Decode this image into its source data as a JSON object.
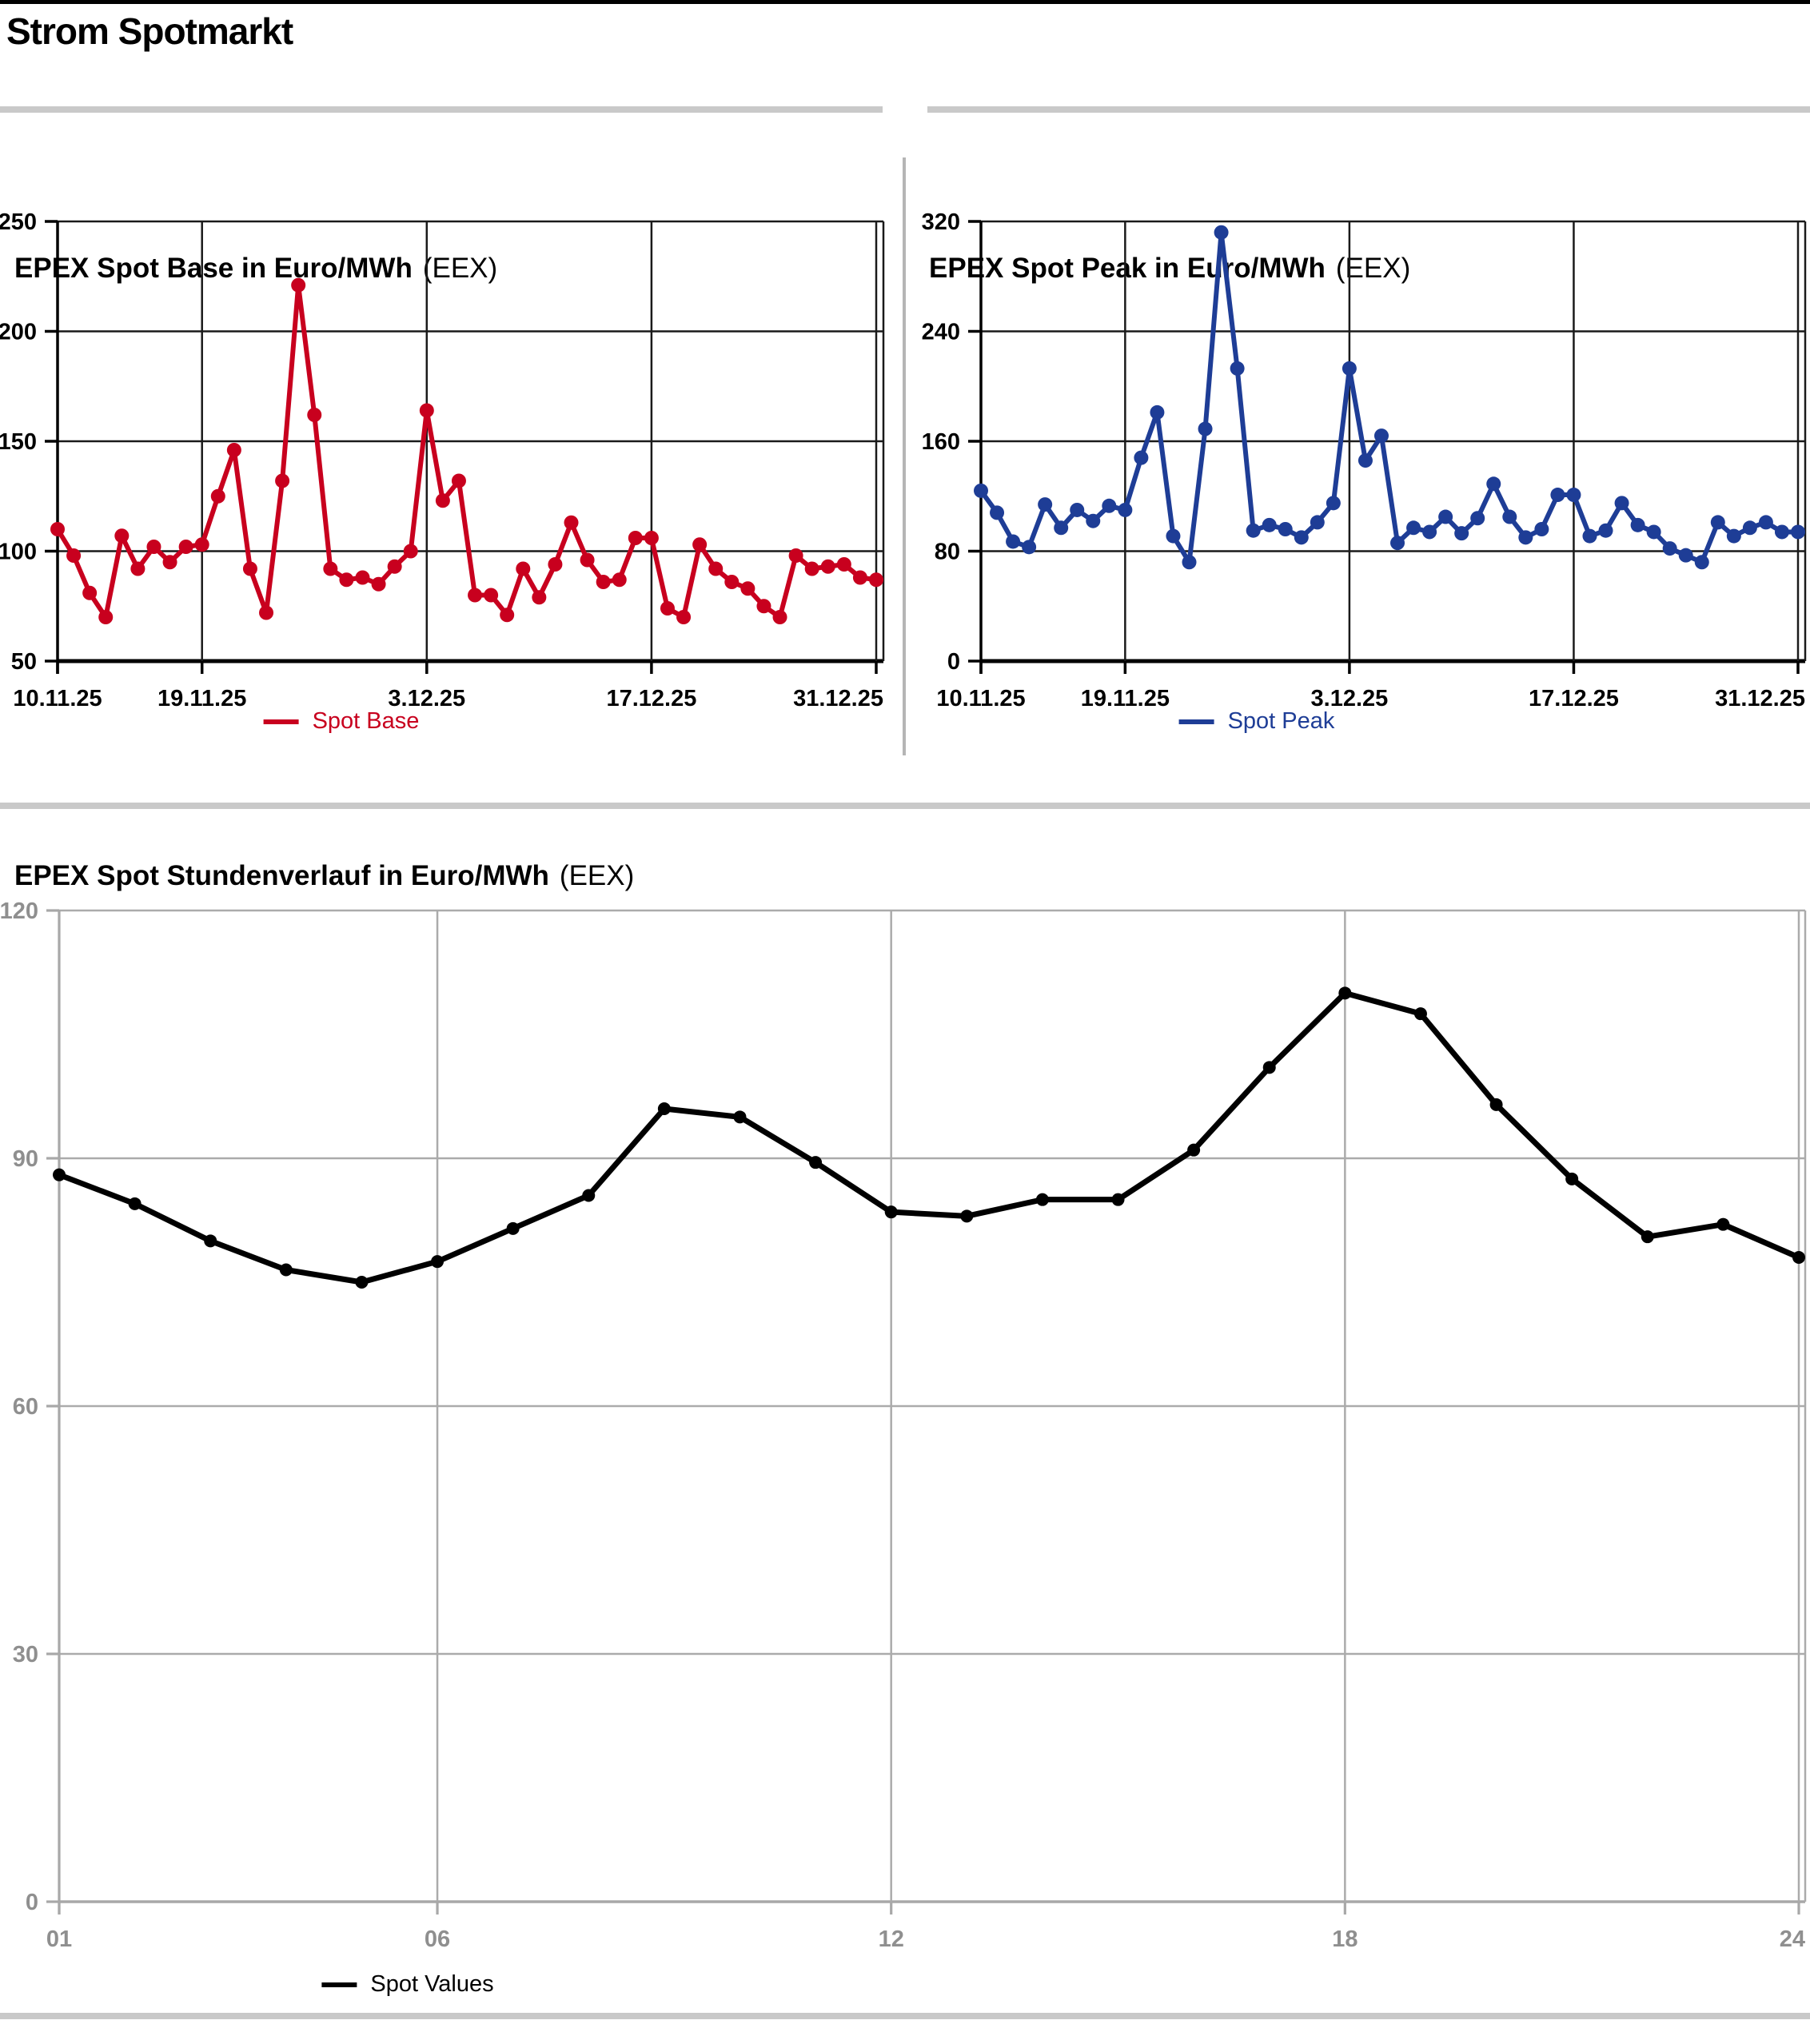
{
  "header": {
    "title": "Strom Spotmarkt"
  },
  "chart_data": [
    {
      "type": "line",
      "title": "EPEX Spot Base in Euro/MWh",
      "title_suffix": "(EEX)",
      "legend": "Spot Base",
      "color": "#c8001e",
      "x_range": [
        0,
        51
      ],
      "x_ticks": [
        {
          "pos": 0,
          "label": "10.11.25"
        },
        {
          "pos": 9,
          "label": "19.11.25"
        },
        {
          "pos": 23,
          "label": "3.12.25"
        },
        {
          "pos": 37,
          "label": "17.12.25"
        },
        {
          "pos": 51,
          "label": "31.12.25"
        }
      ],
      "y_range": [
        50,
        250
      ],
      "y_ticks": [
        50,
        100,
        150,
        200,
        250
      ],
      "grid": "on",
      "legend_position": "bottom",
      "values": [
        110,
        98,
        81,
        70,
        107,
        92,
        102,
        95,
        102,
        103,
        125,
        146,
        92,
        72,
        132,
        221,
        162,
        92,
        87,
        88,
        85,
        93,
        100,
        164,
        123,
        132,
        80,
        80,
        71,
        92,
        79,
        94,
        113,
        96,
        86,
        87,
        106,
        106,
        74,
        70,
        103,
        92,
        86,
        83,
        75,
        70,
        98,
        92,
        93,
        94,
        88,
        87
      ]
    },
    {
      "type": "line",
      "title": "EPEX Spot Peak in Euro/MWh",
      "title_suffix": "(EEX)",
      "legend": "Spot Peak",
      "color": "#1e3d96",
      "x_range": [
        0,
        51
      ],
      "x_ticks": [
        {
          "pos": 0,
          "label": "10.11.25"
        },
        {
          "pos": 9,
          "label": "19.11.25"
        },
        {
          "pos": 23,
          "label": "3.12.25"
        },
        {
          "pos": 37,
          "label": "17.12.25"
        },
        {
          "pos": 51,
          "label": "31.12.25"
        }
      ],
      "y_range": [
        0,
        320
      ],
      "y_ticks": [
        0,
        80,
        160,
        240,
        320
      ],
      "grid": "on",
      "legend_position": "bottom",
      "values": [
        124,
        108,
        87,
        83,
        114,
        97,
        110,
        102,
        113,
        110,
        148,
        181,
        91,
        72,
        169,
        312,
        213,
        95,
        99,
        96,
        90,
        101,
        115,
        213,
        146,
        164,
        86,
        97,
        94,
        105,
        93,
        104,
        129,
        105,
        90,
        96,
        121,
        121,
        91,
        95,
        115,
        99,
        94,
        82,
        77,
        72,
        101,
        91,
        97,
        101,
        94,
        94
      ]
    },
    {
      "type": "line",
      "title": "EPEX Spot Stundenverlauf in Euro/MWh",
      "title_suffix": "(EEX)",
      "legend": "Spot Values",
      "color": "#000000",
      "x_range": [
        1,
        24
      ],
      "x_ticks": [
        {
          "pos": 1,
          "label": "01"
        },
        {
          "pos": 6,
          "label": "06"
        },
        {
          "pos": 12,
          "label": "12"
        },
        {
          "pos": 18,
          "label": "18"
        },
        {
          "pos": 24,
          "label": "24"
        }
      ],
      "y_range": [
        0,
        120
      ],
      "y_ticks": [
        0,
        30,
        60,
        90,
        120
      ],
      "grid": "on",
      "legend_position": "bottom",
      "values": [
        88,
        84.5,
        80,
        76.5,
        75,
        77.5,
        81.5,
        85.5,
        96,
        95,
        89.5,
        83.5,
        83,
        85,
        85,
        91,
        101,
        110,
        107.5,
        96.5,
        87.5,
        80.5,
        82,
        78
      ]
    }
  ]
}
